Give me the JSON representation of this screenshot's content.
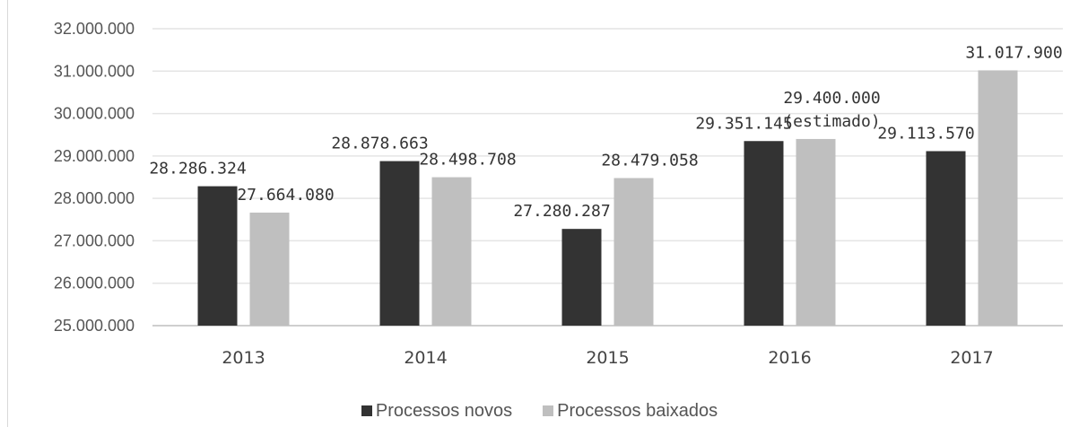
{
  "chart_data": {
    "type": "bar",
    "title": "",
    "xlabel": "",
    "ylabel": "",
    "categories": [
      "2013",
      "2014",
      "2015",
      "2016",
      "2017"
    ],
    "ylim": [
      25000000,
      32000000
    ],
    "yticks": [
      "25.000.000",
      "26.000.000",
      "27.000.000",
      "28.000.000",
      "29.000.000",
      "30.000.000",
      "31.000.000",
      "32.000.000"
    ],
    "grid": true,
    "legend_position": "bottom",
    "series": [
      {
        "name": "Processos novos",
        "color": "#333333",
        "values": [
          28286324,
          28878663,
          27280287,
          29351145,
          29113570
        ],
        "labels": [
          [
            "28.286.324"
          ],
          [
            "28.878.663"
          ],
          [
            "27.280.287"
          ],
          [
            "29.351.145"
          ],
          [
            "29.113.570"
          ]
        ]
      },
      {
        "name": "Processos baixados",
        "color": "#bfbfbf",
        "values": [
          27664080,
          28498708,
          28479058,
          29400000,
          31017900
        ],
        "labels": [
          [
            "27.664.080"
          ],
          [
            "28.498.708"
          ],
          [
            "28.479.058"
          ],
          [
            "29.400.000",
            "(estimado)"
          ],
          [
            "31.017.900"
          ]
        ]
      }
    ]
  }
}
